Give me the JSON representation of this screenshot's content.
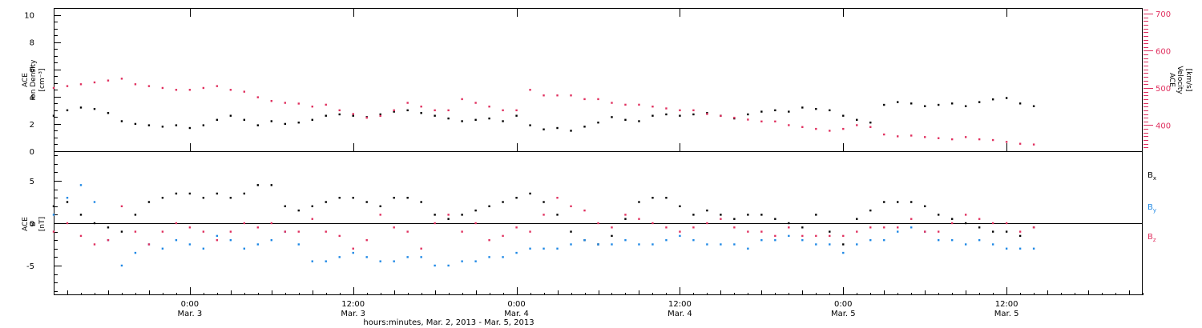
{
  "x_axis": {
    "title": "hours:minutes, Mar. 2, 2013 - Mar. 5, 2013",
    "labels": [
      {
        "t": 0.0,
        "time": "0:00",
        "date": "Mar. 3"
      },
      {
        "t": 12.0,
        "time": "12:00",
        "date": "Mar. 3"
      },
      {
        "t": 24.0,
        "time": "0:00",
        "date": "Mar. 4"
      },
      {
        "t": 36.0,
        "time": "12:00",
        "date": "Mar. 4"
      },
      {
        "t": 48.0,
        "time": "0:00",
        "date": "Mar. 5"
      },
      {
        "t": 60.0,
        "time": "12:00",
        "date": "Mar. 5"
      }
    ],
    "range_hours_from_mar3": [
      -10.0,
      70.0
    ]
  },
  "colors": {
    "black": "#000000",
    "red": "#e0305f",
    "blue": "#1e88e5"
  },
  "chart_data": [
    {
      "type": "scatter",
      "panel": "top",
      "ylabel_left": [
        "ACE",
        "Ion Density",
        "[cm⁻³]"
      ],
      "ylabel_right": [
        "ACE",
        "Velocity",
        "[km/s]"
      ],
      "ylim_left": [
        0,
        10.5
      ],
      "ylim_right": [
        330,
        715
      ],
      "yticks_left": [
        "0",
        "2",
        "4",
        "6",
        "8",
        "10"
      ],
      "yticks_right": [
        "400",
        "500",
        "600",
        "700"
      ],
      "series": [
        {
          "key": "density",
          "axis": "left",
          "color": "black",
          "x": [
            -10,
            -9,
            -8,
            -7,
            -6,
            -5,
            -4,
            -3,
            -2,
            -1,
            0,
            1,
            2,
            3,
            4,
            5,
            6,
            7,
            8,
            9,
            10,
            11,
            12,
            13,
            14,
            15,
            16,
            17,
            18,
            19,
            20,
            21,
            22,
            23,
            24,
            25,
            26,
            27,
            28,
            29,
            30,
            31,
            32,
            33,
            34,
            35,
            36,
            37,
            38,
            39,
            40,
            41,
            42,
            43,
            44,
            45,
            46,
            47,
            48,
            49,
            50,
            51,
            52,
            53,
            54,
            55,
            56,
            57,
            58,
            59,
            60,
            61,
            62
          ],
          "y": [
            2.6,
            3.0,
            3.2,
            3.1,
            2.8,
            2.2,
            2.0,
            1.9,
            1.8,
            1.9,
            1.7,
            1.9,
            2.3,
            2.6,
            2.3,
            1.9,
            2.2,
            2.0,
            2.1,
            2.3,
            2.6,
            2.7,
            2.6,
            2.5,
            2.7,
            2.9,
            3.0,
            2.8,
            2.6,
            2.4,
            2.2,
            2.3,
            2.4,
            2.2,
            2.6,
            1.9,
            1.6,
            1.7,
            1.5,
            1.8,
            2.1,
            2.5,
            2.3,
            2.2,
            2.6,
            2.7,
            2.6,
            2.7,
            2.8,
            2.6,
            2.4,
            2.7,
            2.9,
            3.0,
            2.9,
            3.2,
            3.1,
            3.0,
            2.6,
            2.3,
            2.1,
            3.4,
            3.6,
            3.5,
            3.3,
            3.4,
            3.5,
            3.3,
            3.6,
            3.8,
            3.9,
            3.5,
            3.3
          ]
        },
        {
          "key": "velocity",
          "axis": "right",
          "color": "red",
          "x": [
            -10,
            -9,
            -8,
            -7,
            -6,
            -5,
            -4,
            -3,
            -2,
            -1,
            0,
            1,
            2,
            3,
            4,
            5,
            6,
            7,
            8,
            9,
            10,
            11,
            12,
            13,
            14,
            15,
            16,
            17,
            18,
            19,
            20,
            21,
            22,
            23,
            24,
            25,
            26,
            27,
            28,
            29,
            30,
            31,
            32,
            33,
            34,
            35,
            36,
            37,
            38,
            39,
            40,
            41,
            42,
            43,
            44,
            45,
            46,
            47,
            48,
            49,
            50,
            51,
            52,
            53,
            54,
            55,
            56,
            57,
            58,
            59,
            60,
            61,
            62
          ],
          "y": [
            500,
            505,
            510,
            515,
            520,
            525,
            510,
            505,
            500,
            495,
            495,
            500,
            505,
            495,
            490,
            475,
            465,
            460,
            458,
            450,
            455,
            440,
            430,
            420,
            425,
            440,
            460,
            450,
            440,
            440,
            470,
            460,
            450,
            440,
            440,
            495,
            480,
            480,
            480,
            470,
            470,
            460,
            455,
            455,
            450,
            445,
            440,
            440,
            430,
            425,
            420,
            415,
            410,
            410,
            400,
            395,
            390,
            385,
            390,
            400,
            395,
            375,
            370,
            372,
            368,
            365,
            362,
            368,
            362,
            360,
            355,
            350,
            348
          ]
        }
      ]
    },
    {
      "type": "scatter",
      "panel": "bottom",
      "ylabel_left": [
        "ACE",
        "B",
        "[nT]"
      ],
      "ylim": [
        -8.5,
        8.5
      ],
      "yticks_left": [
        "-5",
        "0",
        "5"
      ],
      "zero_line": true,
      "series": [
        {
          "key": "bx",
          "name": "Bx",
          "color": "black",
          "x": [
            -10,
            -9,
            -8,
            -7,
            -6,
            -5,
            -4,
            -3,
            -2,
            -1,
            0,
            1,
            2,
            3,
            4,
            5,
            6,
            7,
            8,
            9,
            10,
            11,
            12,
            13,
            14,
            15,
            16,
            17,
            18,
            19,
            20,
            21,
            22,
            23,
            24,
            25,
            26,
            27,
            28,
            29,
            30,
            31,
            32,
            33,
            34,
            35,
            36,
            37,
            38,
            39,
            40,
            41,
            42,
            43,
            44,
            45,
            46,
            47,
            48,
            49,
            50,
            51,
            52,
            53,
            54,
            55,
            56,
            57,
            58,
            59,
            60,
            61,
            62
          ],
          "y": [
            2.0,
            2.5,
            1.0,
            0.0,
            -0.5,
            -1.0,
            1.0,
            2.5,
            3.0,
            3.5,
            3.5,
            3.0,
            3.5,
            3.0,
            3.5,
            4.5,
            4.5,
            2.0,
            1.5,
            2.0,
            2.5,
            3.0,
            3.0,
            2.5,
            2.0,
            3.0,
            3.0,
            2.5,
            1.0,
            0.5,
            1.0,
            1.5,
            2.0,
            2.5,
            3.0,
            3.5,
            2.5,
            1.0,
            -1.0,
            -2.0,
            -2.5,
            -1.5,
            0.5,
            2.5,
            3.0,
            3.0,
            2.0,
            1.0,
            1.5,
            1.0,
            0.5,
            1.0,
            1.0,
            0.5,
            0.0,
            -0.5,
            1.0,
            -1.0,
            -2.5,
            0.5,
            1.5,
            2.5,
            2.5,
            2.5,
            2.0,
            1.0,
            0.5,
            0.0,
            -0.5,
            -1.0,
            -1.0,
            -1.5,
            -0.5
          ]
        },
        {
          "key": "by",
          "name": "By",
          "color": "blue",
          "x": [
            -10,
            -9,
            -8,
            -7,
            -6,
            -5,
            -4,
            -3,
            -2,
            -1,
            0,
            1,
            2,
            3,
            4,
            5,
            6,
            7,
            8,
            9,
            10,
            11,
            12,
            13,
            14,
            15,
            16,
            17,
            18,
            19,
            20,
            21,
            22,
            23,
            24,
            25,
            26,
            27,
            28,
            29,
            30,
            31,
            32,
            33,
            34,
            35,
            36,
            37,
            38,
            39,
            40,
            41,
            42,
            43,
            44,
            45,
            46,
            47,
            48,
            49,
            50,
            51,
            52,
            53,
            54,
            55,
            56,
            57,
            58,
            59,
            60,
            61,
            62
          ],
          "y": [
            1.0,
            3.0,
            4.5,
            2.5,
            -2.0,
            -5.0,
            -3.5,
            -2.5,
            -3.0,
            -2.0,
            -2.5,
            -3.0,
            -1.5,
            -2.0,
            -3.0,
            -2.5,
            -2.0,
            -1.0,
            -2.5,
            -4.5,
            -4.5,
            -4.0,
            -3.5,
            -4.0,
            -4.5,
            -4.5,
            -4.0,
            -4.0,
            -5.0,
            -5.0,
            -4.5,
            -4.5,
            -4.0,
            -4.0,
            -3.5,
            -3.0,
            -3.0,
            -3.0,
            -2.5,
            -2.0,
            -2.5,
            -2.5,
            -2.0,
            -2.5,
            -2.5,
            -2.0,
            -1.5,
            -2.0,
            -2.5,
            -2.5,
            -2.5,
            -3.0,
            -2.0,
            -2.0,
            -1.5,
            -2.0,
            -2.5,
            -2.5,
            -3.5,
            -2.5,
            -2.0,
            -2.0,
            -1.0,
            -0.5,
            -1.0,
            -2.0,
            -2.0,
            -2.5,
            -2.0,
            -2.5,
            -3.0,
            -3.0,
            -3.0
          ]
        },
        {
          "key": "bz",
          "name": "Bz",
          "color": "red",
          "x": [
            -10,
            -9,
            -8,
            -7,
            -6,
            -5,
            -4,
            -3,
            -2,
            -1,
            0,
            1,
            2,
            3,
            4,
            5,
            6,
            7,
            8,
            9,
            10,
            11,
            12,
            13,
            14,
            15,
            16,
            17,
            18,
            19,
            20,
            21,
            22,
            23,
            24,
            25,
            26,
            27,
            28,
            29,
            30,
            31,
            32,
            33,
            34,
            35,
            36,
            37,
            38,
            39,
            40,
            41,
            42,
            43,
            44,
            45,
            46,
            47,
            48,
            49,
            50,
            51,
            52,
            53,
            54,
            55,
            56,
            57,
            58,
            59,
            60,
            61,
            62
          ],
          "y": [
            -1.0,
            0.0,
            -1.5,
            -2.5,
            -2.0,
            2.0,
            -1.0,
            -2.5,
            -1.0,
            0.0,
            -0.5,
            -1.0,
            -2.0,
            -1.0,
            0.0,
            -0.5,
            0.0,
            -1.0,
            -1.0,
            0.5,
            -1.0,
            -1.5,
            -3.0,
            -2.0,
            1.0,
            -0.5,
            -1.0,
            -3.0,
            0.0,
            1.0,
            -1.0,
            0.0,
            -2.0,
            -1.5,
            -0.5,
            -1.0,
            1.0,
            3.0,
            2.0,
            1.5,
            0.0,
            -0.5,
            1.0,
            0.5,
            0.0,
            -0.5,
            -1.0,
            -0.5,
            0.0,
            0.5,
            -0.5,
            -1.0,
            -1.0,
            -1.5,
            -0.5,
            -1.5,
            -1.5,
            -1.5,
            -1.5,
            -1.0,
            -0.5,
            -0.5,
            -0.5,
            0.5,
            -1.0,
            -1.0,
            0.0,
            1.0,
            0.5,
            0.0,
            0.0,
            -1.0,
            -0.5
          ]
        }
      ]
    }
  ]
}
